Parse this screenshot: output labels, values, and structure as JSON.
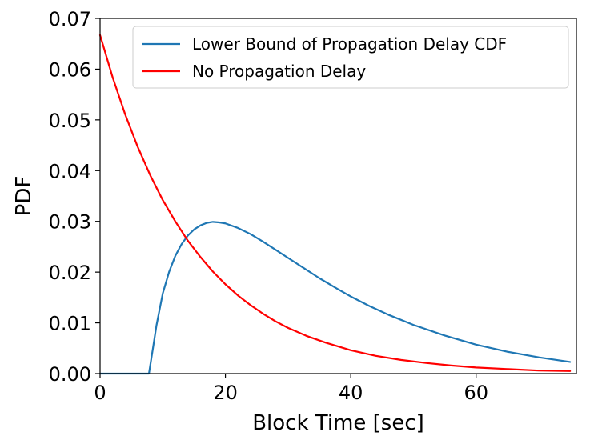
{
  "chart_data": {
    "type": "line",
    "title": "",
    "xlabel": "Block Time [sec]",
    "ylabel": "PDF",
    "xlim": [
      0,
      76
    ],
    "ylim": [
      0,
      0.07
    ],
    "xticks": [
      0,
      20,
      40,
      60
    ],
    "xtick_labels": [
      "0",
      "20",
      "40",
      "60"
    ],
    "yticks": [
      0,
      0.01,
      0.02,
      0.03,
      0.04,
      0.05,
      0.06,
      0.07
    ],
    "ytick_labels": [
      "0.00",
      "0.01",
      "0.02",
      "0.03",
      "0.04",
      "0.05",
      "0.06",
      "0.07"
    ],
    "grid": false,
    "legend_position": "top-right",
    "series": [
      {
        "name": "Lower Bound of Propagation Delay CDF",
        "color": "#1f77b4",
        "x": [
          0,
          7.8,
          8.5,
          9,
          10,
          11,
          12,
          13,
          14,
          15,
          16,
          17,
          18,
          19,
          20,
          22,
          24,
          26,
          28,
          30,
          32,
          35,
          38,
          40,
          43,
          46,
          50,
          55,
          60,
          65,
          70,
          75
        ],
        "y": [
          0,
          0,
          0.0055,
          0.0095,
          0.0158,
          0.02,
          0.0232,
          0.0255,
          0.0272,
          0.0284,
          0.0292,
          0.0297,
          0.0299,
          0.0298,
          0.0296,
          0.0287,
          0.0275,
          0.026,
          0.0244,
          0.0228,
          0.0212,
          0.0188,
          0.0166,
          0.0152,
          0.0133,
          0.0116,
          0.0096,
          0.0075,
          0.0057,
          0.0043,
          0.0032,
          0.0023
        ]
      },
      {
        "name": "No Propagation Delay",
        "color": "#ff0000",
        "x": [
          0,
          2,
          4,
          6,
          8,
          10,
          12,
          14,
          16,
          18,
          20,
          22,
          24,
          26,
          28,
          30,
          33,
          36,
          40,
          44,
          48,
          52,
          56,
          60,
          65,
          70,
          75
        ],
        "y": [
          0.0667,
          0.0584,
          0.0511,
          0.0447,
          0.0391,
          0.0342,
          0.03,
          0.0262,
          0.023,
          0.0201,
          0.0176,
          0.0154,
          0.0135,
          0.0118,
          0.0103,
          0.009,
          0.0074,
          0.0061,
          0.0046,
          0.0035,
          0.0027,
          0.0021,
          0.0016,
          0.0012,
          0.0009,
          0.0006,
          0.0005
        ]
      }
    ]
  }
}
